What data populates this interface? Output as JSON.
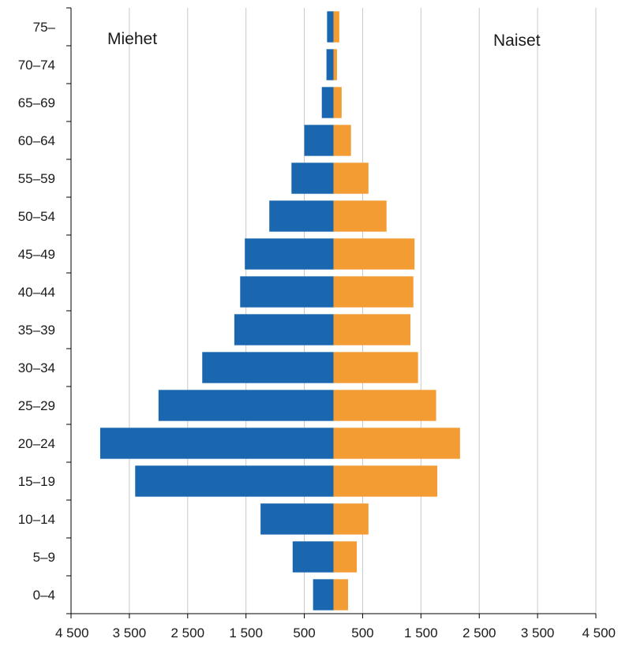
{
  "chart_data": {
    "type": "bar",
    "orientation": "horizontal-population-pyramid",
    "categories": [
      "0–4",
      "5–9",
      "10–14",
      "15–19",
      "20–24",
      "25–29",
      "30–34",
      "35–39",
      "40–44",
      "45–49",
      "50–54",
      "55–59",
      "60–64",
      "65–69",
      "70–74",
      "75–"
    ],
    "series": [
      {
        "name": "Miehet",
        "color": "#1a67b0",
        "values": [
          350,
          700,
          1250,
          3400,
          4000,
          3000,
          2250,
          1700,
          1600,
          1520,
          1100,
          720,
          500,
          200,
          120,
          110
        ]
      },
      {
        "name": "Naiset",
        "color": "#f39c33",
        "values": [
          250,
          400,
          600,
          1780,
          2170,
          1760,
          1450,
          1320,
          1370,
          1390,
          910,
          600,
          300,
          140,
          60,
          100
        ]
      }
    ],
    "x_ticks": [
      "4 500",
      "3 500",
      "2 500",
      "1 500",
      "500",
      "500",
      "1 500",
      "2 500",
      "3 500",
      "4 500"
    ],
    "x_tick_values": [
      -4500,
      -3500,
      -2500,
      -1500,
      -500,
      500,
      1500,
      2500,
      3500,
      4500
    ],
    "xlim": [
      -4500,
      4500
    ],
    "grid": "vertical",
    "legend": "inline-top"
  }
}
